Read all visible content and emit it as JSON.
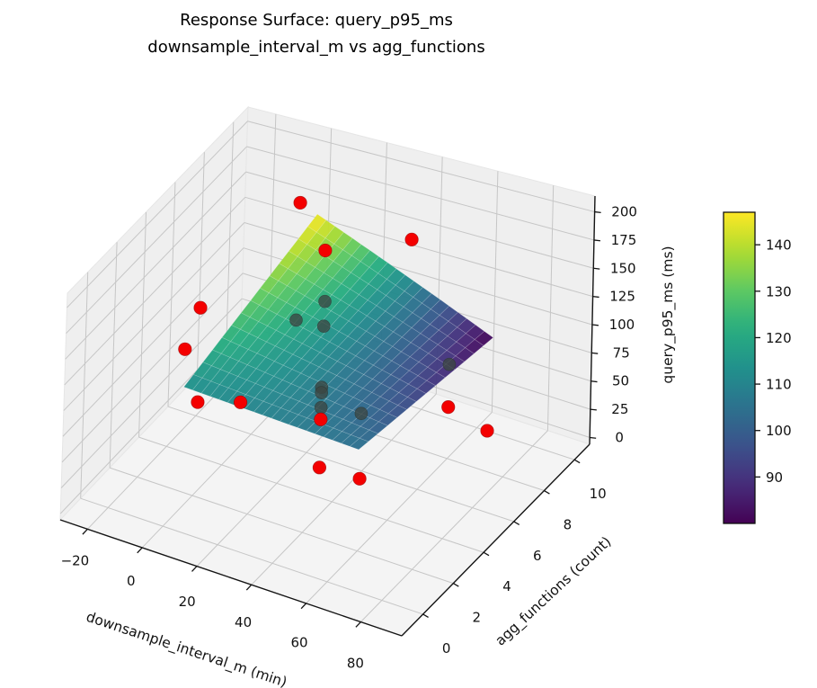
{
  "title": {
    "line1": "Response Surface: query_p95_ms",
    "line2": "downsample_interval_m vs agg_functions"
  },
  "chart_data": {
    "type": "surface3d_scatter",
    "title": "Response Surface: query_p95_ms\ndownsample_interval_m vs agg_functions",
    "xlabel": "downsample_interval_m (min)",
    "ylabel": "agg_functions (count)",
    "zlabel": "query_p95_ms (ms)",
    "colormap": "viridis",
    "grid": true,
    "x_ticks": [
      -20,
      0,
      20,
      40,
      60,
      80
    ],
    "y_ticks": [
      0,
      2,
      4,
      6,
      8,
      10
    ],
    "z_ticks": [
      0,
      25,
      50,
      75,
      100,
      125,
      150,
      175,
      200
    ],
    "xlim": [
      -30,
      95
    ],
    "ylim": [
      -1.4,
      11
    ],
    "zlim": [
      -6,
      214
    ],
    "surface": {
      "x_range": [
        1,
        65
      ],
      "y_range": [
        1,
        10
      ],
      "model": "z = a + bx*x + by*y + bxy*x*y",
      "coeffs": {
        "a": 109.24,
        "bx": -0.0226,
        "by": 3.881,
        "bxy": -0.1024
      },
      "value_min": 80,
      "value_max": 147,
      "x_samples": [
        1,
        17,
        33,
        49,
        65
      ],
      "y_samples": [
        1,
        4,
        7,
        10
      ],
      "z_grid": [
        [
          113.0,
          111.0,
          109.0,
          107.0,
          105.0
        ],
        [
          124.3,
          117.4,
          110.5,
          103.6,
          96.7
        ],
        [
          135.7,
          123.8,
          112.0,
          100.2,
          88.3
        ],
        [
          147.0,
          130.3,
          113.5,
          96.8,
          80.0
        ]
      ]
    },
    "scatter_points": [
      {
        "x": 5,
        "y": 8,
        "z": 190
      },
      {
        "x": 35,
        "y": 10,
        "z": 148
      },
      {
        "x": 30,
        "y": 5,
        "z": 206
      },
      {
        "x": 1,
        "y": 2,
        "z": 174
      },
      {
        "x": 1,
        "y": 1,
        "z": 149
      },
      {
        "x": 1,
        "y": 2,
        "z": 84
      },
      {
        "x": 1,
        "y": 5,
        "z": 40
      },
      {
        "x": 30,
        "y": 5,
        "z": 48
      },
      {
        "x": 60,
        "y": 8,
        "z": 41
      },
      {
        "x": 90,
        "y": 5,
        "z": 85
      },
      {
        "x": 30,
        "y": 5,
        "z": 3
      },
      {
        "x": 55,
        "y": 3,
        "z": 42
      }
    ],
    "occluded_points": [
      {
        "x": 20,
        "y": 7,
        "z": 122
      },
      {
        "x": 15,
        "y": 6,
        "z": 115
      },
      {
        "x": 25,
        "y": 6,
        "z": 117
      },
      {
        "x": 30,
        "y": 5,
        "z": 78
      },
      {
        "x": 30,
        "y": 5,
        "z": 73
      },
      {
        "x": 30,
        "y": 5,
        "z": 59
      },
      {
        "x": 55,
        "y": 3,
        "z": 102
      },
      {
        "x": 60,
        "y": 8,
        "z": 80
      }
    ],
    "colorbar": {
      "vmin": 80,
      "vmax": 147,
      "ticks": [
        90,
        100,
        110,
        120,
        130,
        140
      ]
    },
    "colors": {
      "scatter_point": "#f40000",
      "scatter_edge": "#a00000",
      "occluded_point": "#3c4743",
      "pane_wall": "#efefef",
      "pane_floor": "#f4f4f4",
      "grid_line": "#c6c6c6",
      "spine": "#141414"
    }
  }
}
